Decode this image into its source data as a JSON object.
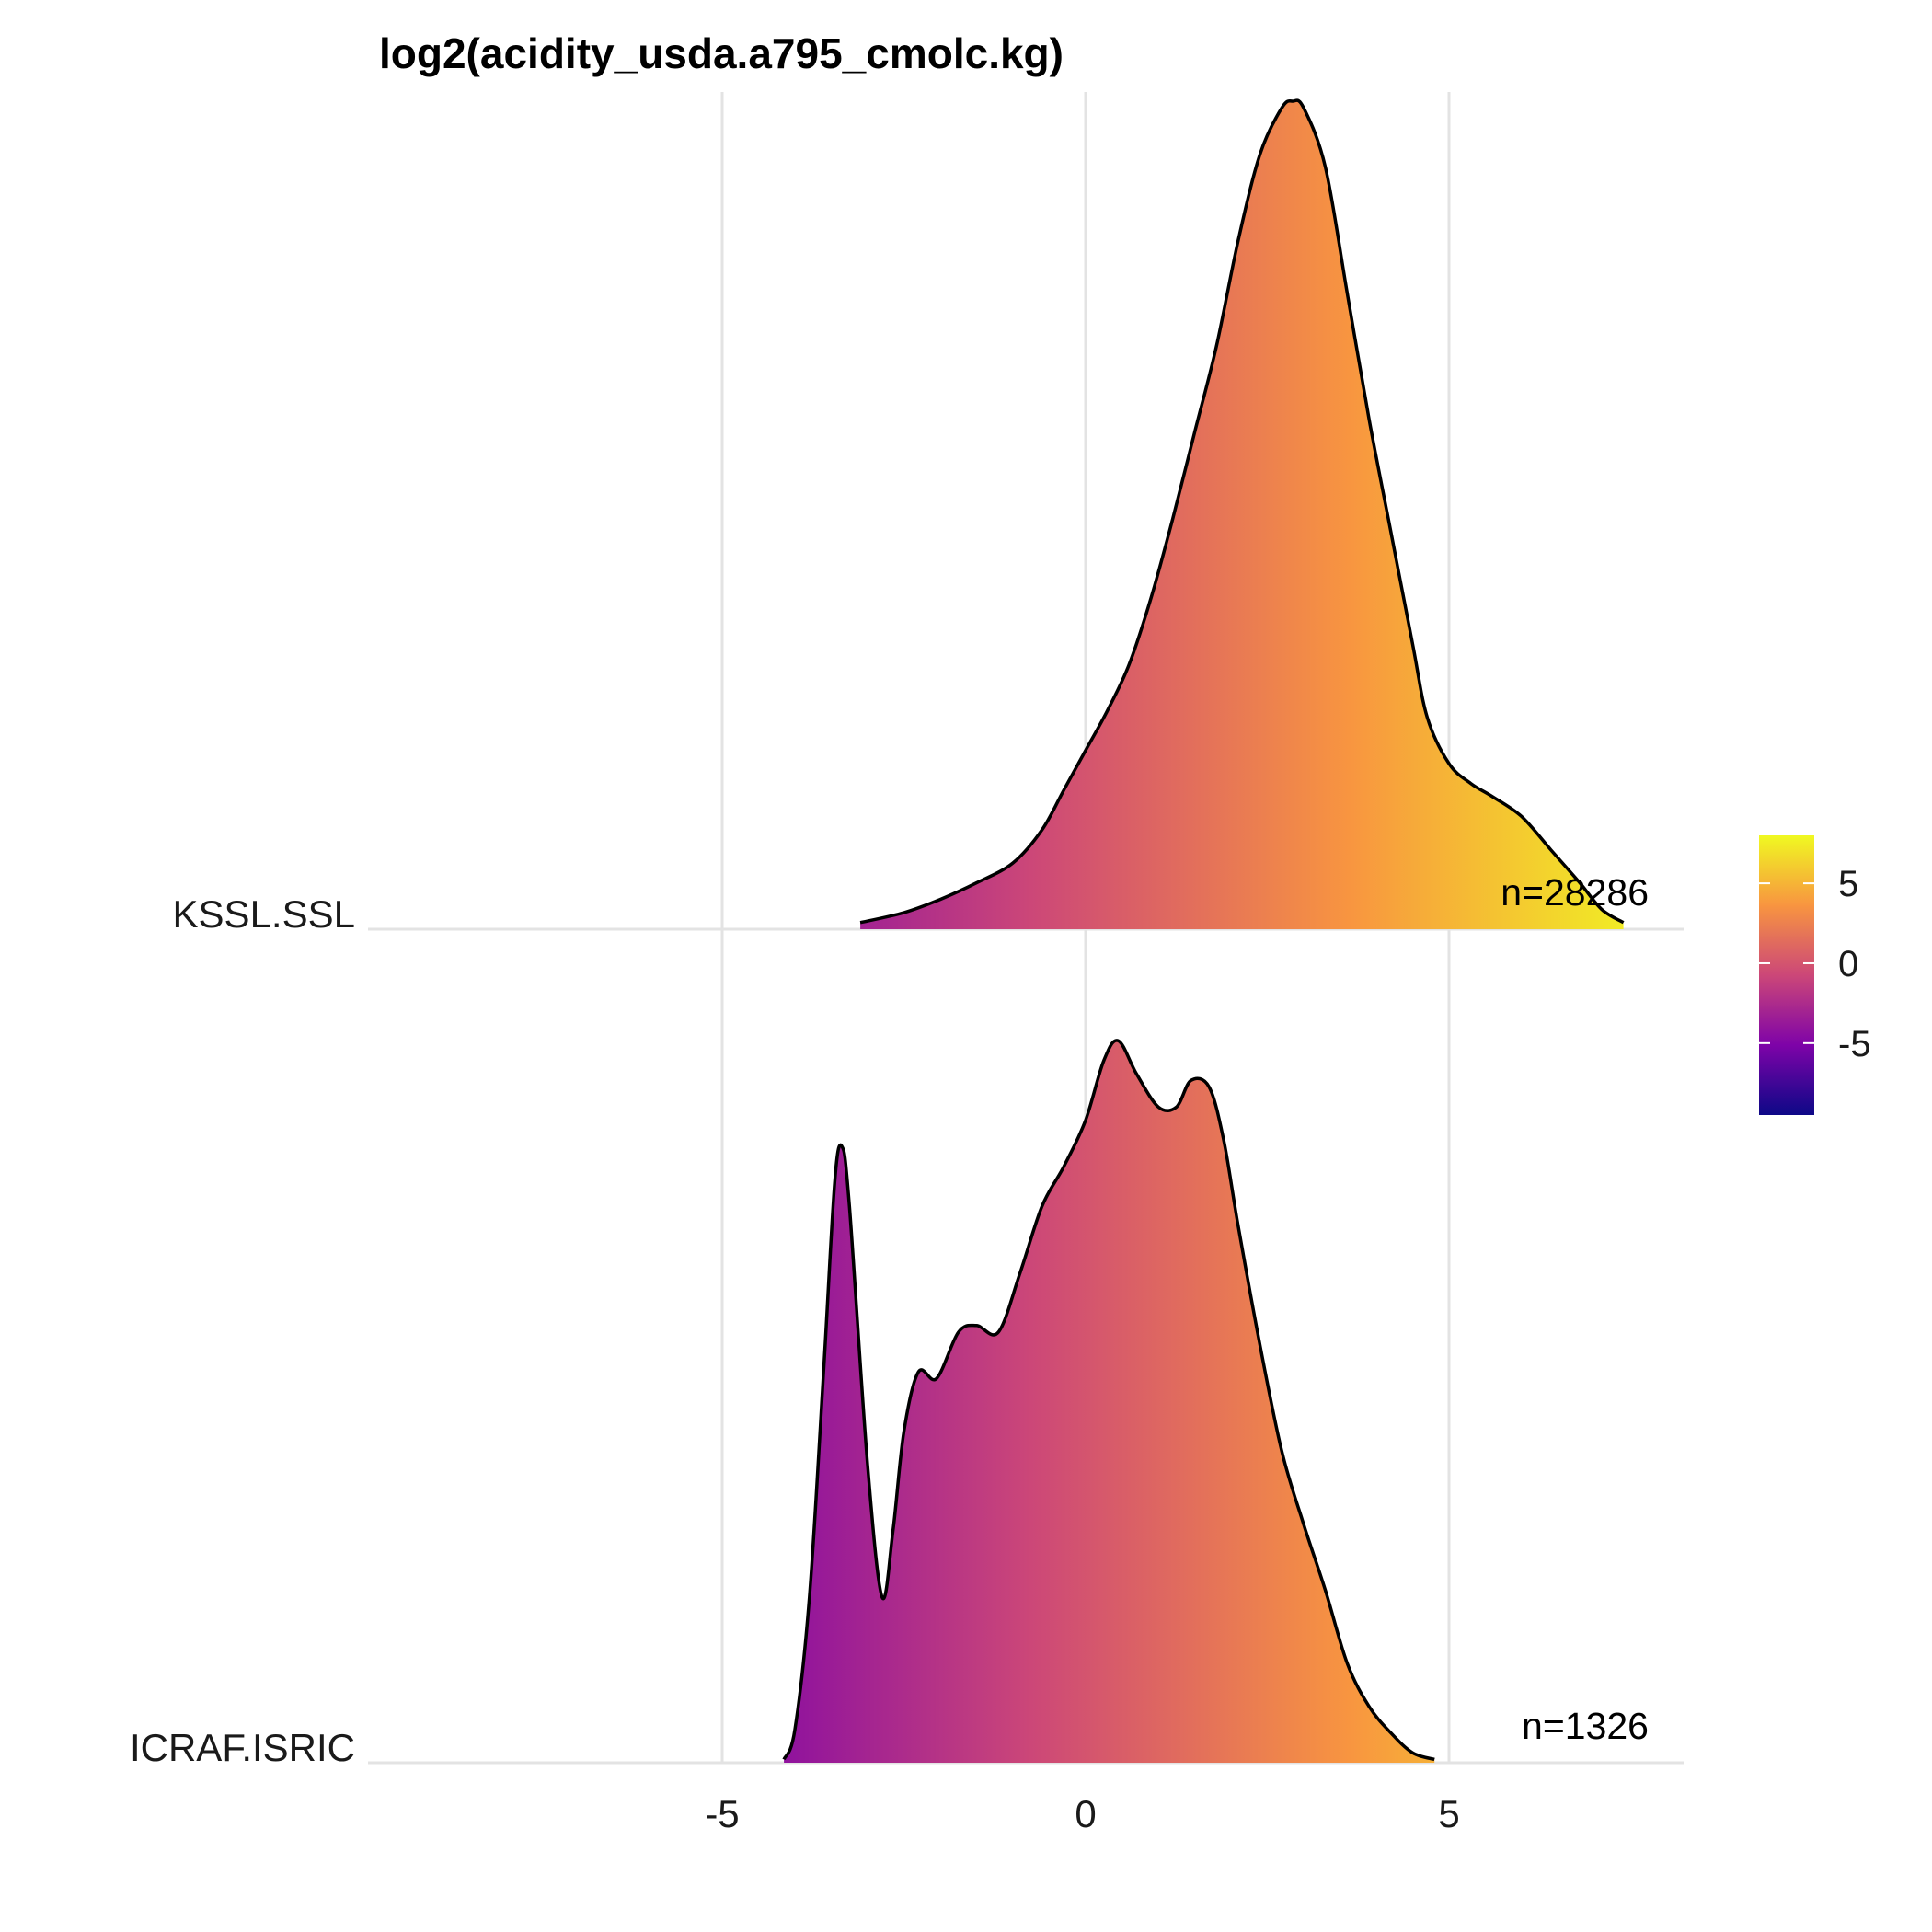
{
  "chart_data": {
    "type": "ridgeline",
    "title": "log2(acidity_usda.a795_cmolc.kg)",
    "xlim": [
      -10,
      8.2
    ],
    "x_ticks": [
      -5,
      0,
      5
    ],
    "x_tick_labels": [
      "-5",
      "0",
      "5"
    ],
    "grid": true,
    "fill": "gradient-by-x",
    "colorbar": {
      "position": "right",
      "range": [
        -9.5,
        8
      ],
      "ticks": [
        5,
        0,
        -5
      ],
      "tick_labels": [
        "5",
        "0",
        "-5"
      ],
      "colors": [
        "#0d0887",
        "#7e03a8",
        "#cc4778",
        "#f89540",
        "#f0f921"
      ]
    },
    "series": [
      {
        "name": "KSSL.SSL",
        "n_label": "n=28286",
        "x": [
          -3.1,
          -2.5,
          -2.0,
          -1.5,
          -1.0,
          -0.6,
          -0.3,
          0.0,
          0.3,
          0.6,
          0.9,
          1.2,
          1.5,
          1.8,
          2.1,
          2.4,
          2.7,
          2.85,
          3.0,
          3.3,
          3.6,
          3.9,
          4.2,
          4.5,
          4.7,
          5.0,
          5.3,
          5.6,
          6.0,
          6.4,
          6.8,
          7.1,
          7.4
        ],
        "y": [
          0.01,
          0.025,
          0.045,
          0.07,
          0.1,
          0.15,
          0.21,
          0.27,
          0.33,
          0.4,
          0.5,
          0.62,
          0.75,
          0.88,
          1.04,
          1.17,
          1.24,
          1.25,
          1.24,
          1.15,
          0.96,
          0.77,
          0.6,
          0.43,
          0.32,
          0.25,
          0.22,
          0.2,
          0.17,
          0.12,
          0.07,
          0.03,
          0.01
        ]
      },
      {
        "name": "ICRAF.ISRIC",
        "n_label": "n=1326",
        "x": [
          -4.15,
          -4.0,
          -3.8,
          -3.6,
          -3.45,
          -3.35,
          -3.25,
          -3.0,
          -2.8,
          -2.65,
          -2.5,
          -2.3,
          -2.05,
          -1.75,
          -1.5,
          -1.2,
          -0.9,
          -0.6,
          -0.3,
          0.0,
          0.25,
          0.45,
          0.7,
          1.0,
          1.25,
          1.45,
          1.7,
          1.9,
          2.1,
          2.4,
          2.7,
          3.0,
          3.3,
          3.6,
          3.9,
          4.2,
          4.5,
          4.8
        ],
        "y": [
          0.005,
          0.05,
          0.25,
          0.6,
          0.88,
          0.93,
          0.84,
          0.45,
          0.25,
          0.35,
          0.5,
          0.59,
          0.58,
          0.65,
          0.66,
          0.65,
          0.74,
          0.84,
          0.9,
          0.97,
          1.06,
          1.09,
          1.04,
          0.99,
          0.99,
          1.03,
          1.02,
          0.94,
          0.81,
          0.63,
          0.47,
          0.36,
          0.26,
          0.15,
          0.085,
          0.045,
          0.015,
          0.005
        ]
      }
    ]
  }
}
